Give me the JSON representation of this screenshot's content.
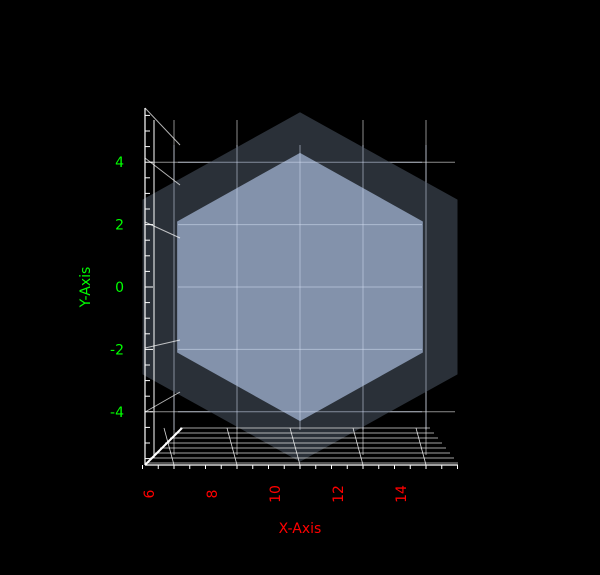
{
  "chart_data": {
    "type": "3d-surface",
    "xlabel": "X-Axis",
    "ylabel": "Y-Axis",
    "x_ticks": [
      6,
      8,
      10,
      12,
      14
    ],
    "y_ticks": [
      4,
      2,
      0,
      -2,
      -4
    ],
    "xlim": [
      5,
      15
    ],
    "ylim": [
      -5.5,
      5.5
    ],
    "grid": true,
    "background_color": "#000000",
    "axis_color": "#ffffff",
    "x_label_color": "#ff0000",
    "y_label_color": "#00ff00",
    "series": [
      {
        "shape": "hexagon",
        "center": [
          10,
          0
        ],
        "vertices": [
          [
            10,
            5.6
          ],
          [
            15,
            2.8
          ],
          [
            15,
            -2.8
          ],
          [
            10,
            -5.6
          ],
          [
            5,
            -2.8
          ],
          [
            5,
            2.8
          ]
        ],
        "fill_color": "#2a3038"
      },
      {
        "shape": "hexagon",
        "center": [
          10,
          0
        ],
        "vertices": [
          [
            10,
            4.3
          ],
          [
            13.9,
            2.1
          ],
          [
            13.9,
            -2.1
          ],
          [
            10,
            -4.3
          ],
          [
            6.1,
            -2.1
          ],
          [
            6.1,
            2.1
          ]
        ],
        "fill_color": "#8696b0"
      }
    ]
  }
}
